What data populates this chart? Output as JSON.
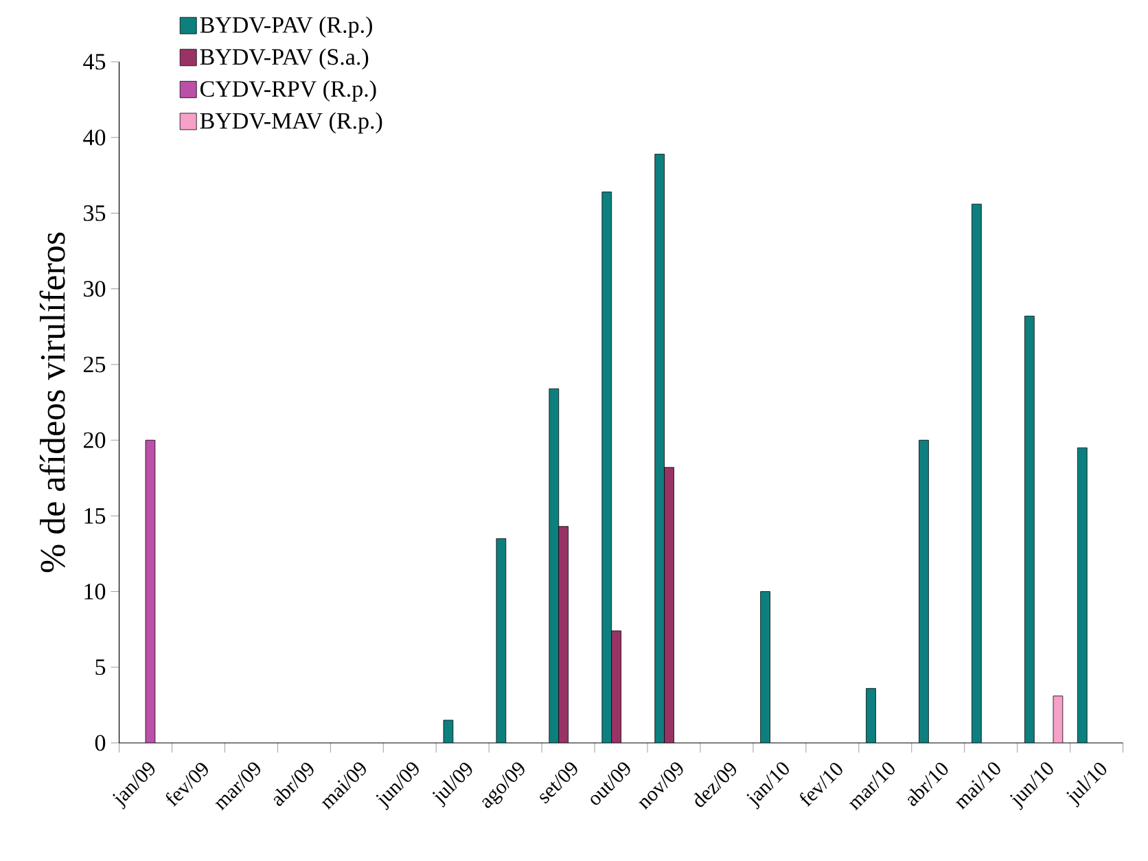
{
  "chart_data": {
    "type": "bar",
    "ylabel": "% de afídeos virulíferos",
    "categories": [
      "jan/09",
      "fev/09",
      "mar/09",
      "abr/09",
      "mai/09",
      "jun/09",
      "jul/09",
      "ago/09",
      "set/09",
      "out/09",
      "nov/09",
      "dez/09",
      "jan/10",
      "fev/10",
      "mar/10",
      "abr/10",
      "mai/10",
      "jun/10",
      "jul/10"
    ],
    "series": [
      {
        "name": "BYDV-PAV (R.p.)",
        "color": "#0e7f7f",
        "values": [
          null,
          null,
          null,
          null,
          null,
          null,
          1.5,
          13.5,
          23.4,
          36.4,
          38.9,
          null,
          10.0,
          null,
          3.6,
          20.0,
          35.6,
          28.2,
          19.5
        ]
      },
      {
        "name": "BYDV-PAV (S.a.)",
        "color": "#993366",
        "values": [
          null,
          null,
          null,
          null,
          null,
          null,
          null,
          null,
          14.3,
          7.4,
          18.2,
          null,
          null,
          null,
          null,
          null,
          null,
          null,
          null
        ]
      },
      {
        "name": "CYDV-RPV (R.p.)",
        "color": "#bb50a8",
        "values": [
          20.0,
          null,
          null,
          null,
          null,
          null,
          null,
          null,
          null,
          null,
          null,
          null,
          null,
          null,
          null,
          null,
          null,
          null,
          null
        ]
      },
      {
        "name": "BYDV-MAV (R.p.)",
        "color": "#f7a0c8",
        "values": [
          null,
          null,
          null,
          null,
          null,
          null,
          null,
          null,
          null,
          null,
          null,
          null,
          null,
          null,
          null,
          null,
          null,
          3.1,
          null
        ]
      }
    ],
    "ylim": [
      0,
      45
    ],
    "yticks": [
      0,
      5,
      10,
      15,
      20,
      25,
      30,
      35,
      40,
      45
    ],
    "grid": false,
    "legend": "top left"
  }
}
